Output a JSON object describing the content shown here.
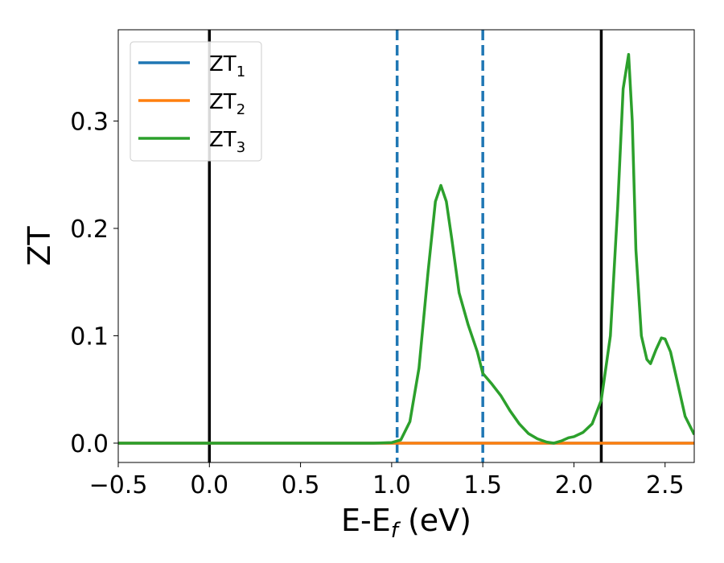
{
  "chart_data": {
    "type": "line",
    "xlabel_main": "E-E",
    "xlabel_sub": "f",
    "xlabel_tail": " (eV)",
    "ylabel": "ZT",
    "xlim": [
      -0.5,
      2.66
    ],
    "ylim": [
      -0.018,
      0.385
    ],
    "xticks": [
      -0.5,
      0.0,
      0.5,
      1.0,
      1.5,
      2.0,
      2.5
    ],
    "xtick_labels": [
      "−0.5",
      "0.0",
      "0.5",
      "1.0",
      "1.5",
      "2.0",
      "2.5"
    ],
    "yticks": [
      0.0,
      0.1,
      0.2,
      0.3
    ],
    "ytick_labels": [
      "0.0",
      "0.1",
      "0.2",
      "0.3"
    ],
    "grid": false,
    "legend_position": "top-left",
    "series": [
      {
        "name_main": "ZT",
        "name_sub": "1",
        "color": "#1f77b4",
        "x": [
          -0.5,
          2.66
        ],
        "y": [
          0.0,
          0.0
        ]
      },
      {
        "name_main": "ZT",
        "name_sub": "2",
        "color": "#ff7f0e",
        "x": [
          -0.5,
          2.66
        ],
        "y": [
          0.0,
          0.0
        ]
      },
      {
        "name_main": "ZT",
        "name_sub": "3",
        "color": "#2ca02c",
        "x": [
          -0.5,
          0.9,
          1.0,
          1.05,
          1.1,
          1.15,
          1.2,
          1.24,
          1.27,
          1.3,
          1.33,
          1.37,
          1.42,
          1.47,
          1.5,
          1.55,
          1.6,
          1.65,
          1.7,
          1.75,
          1.8,
          1.85,
          1.89,
          1.93,
          1.97,
          2.0,
          2.05,
          2.1,
          2.15,
          2.2,
          2.24,
          2.27,
          2.3,
          2.32,
          2.34,
          2.37,
          2.4,
          2.42,
          2.45,
          2.48,
          2.5,
          2.53,
          2.57,
          2.61,
          2.66
        ],
        "y": [
          0.0,
          0.0,
          0.0005,
          0.003,
          0.02,
          0.07,
          0.16,
          0.225,
          0.24,
          0.225,
          0.19,
          0.14,
          0.11,
          0.085,
          0.065,
          0.055,
          0.044,
          0.03,
          0.018,
          0.009,
          0.004,
          0.001,
          0.0,
          0.002,
          0.005,
          0.006,
          0.01,
          0.018,
          0.04,
          0.1,
          0.22,
          0.33,
          0.362,
          0.3,
          0.18,
          0.1,
          0.078,
          0.074,
          0.087,
          0.098,
          0.097,
          0.085,
          0.055,
          0.025,
          0.008
        ]
      }
    ],
    "vlines": [
      {
        "x": 0.0,
        "color": "#000000",
        "style": "solid"
      },
      {
        "x": 1.03,
        "color": "#1f77b4",
        "style": "dashed"
      },
      {
        "x": 1.5,
        "color": "#1f77b4",
        "style": "dashed"
      },
      {
        "x": 2.15,
        "color": "#000000",
        "style": "solid"
      }
    ]
  }
}
